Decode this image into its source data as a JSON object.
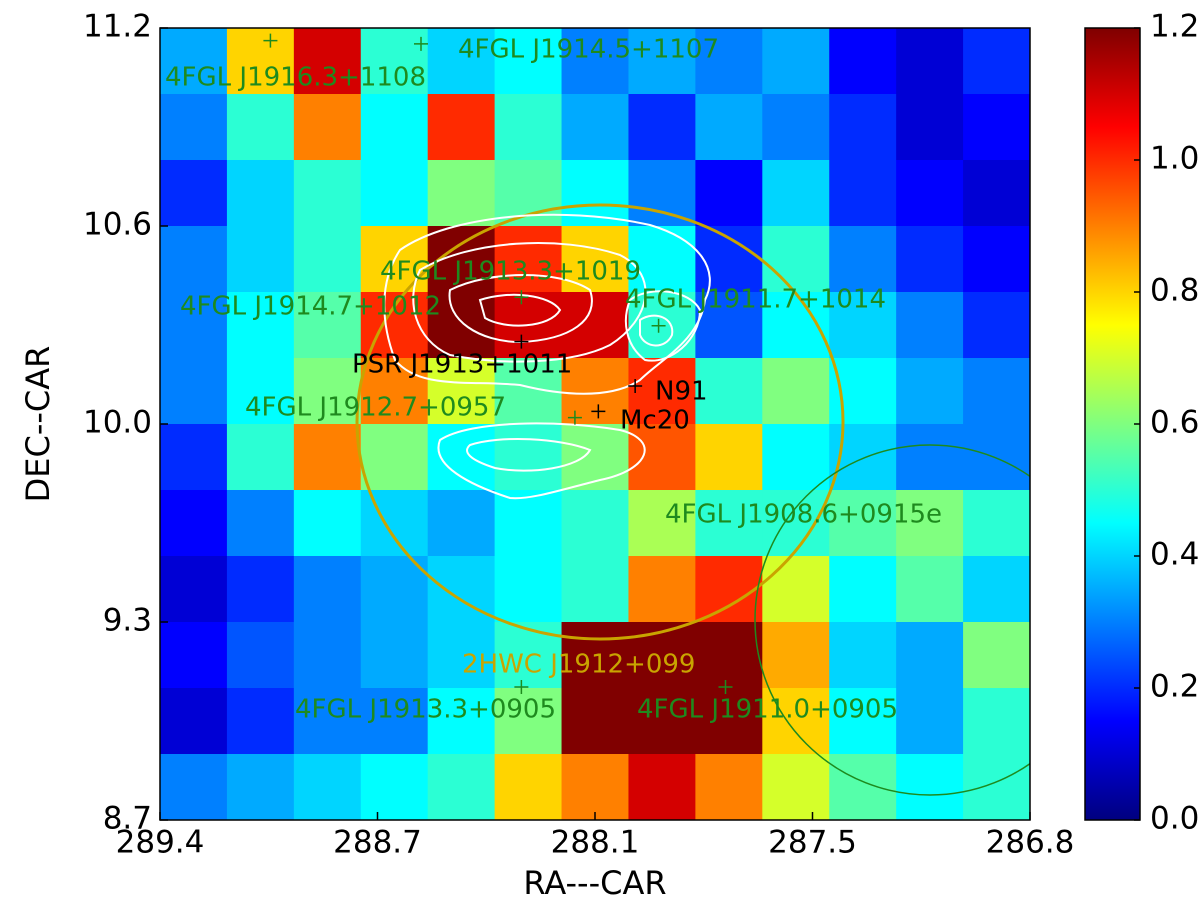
{
  "chart_data": {
    "type": "heatmap",
    "xlabel": "RA---CAR",
    "ylabel": "DEC--CAR",
    "colormap": "jet",
    "xlim": [
      289.4,
      286.8
    ],
    "ylim": [
      8.7,
      11.2
    ],
    "xticks": [
      289.4,
      {
        "value": 288.75,
        "label": "288.7"
      },
      288.1,
      {
        "value": 287.45,
        "label": "287.5"
      },
      286.8
    ],
    "yticks": [
      8.7,
      {
        "value": 9.325,
        "label": "9.3"
      },
      {
        "value": 9.95,
        "label": "10.0"
      },
      {
        "value": 10.575,
        "label": "10.6"
      },
      11.2
    ],
    "colorbar": {
      "clim": [
        0,
        1.2
      ],
      "ticks": [
        {
          "value": 0,
          "label": "0.0"
        },
        0.2,
        0.4,
        0.6,
        0.8,
        {
          "value": 1,
          "label": "1.0"
        },
        1.2
      ]
    },
    "values": [
      [
        0.35,
        0.8,
        1.1,
        0.5,
        0.4,
        0.45,
        0.3,
        0.35,
        0.3,
        0.35,
        0.15,
        0.1,
        0.2
      ],
      [
        0.3,
        0.5,
        0.9,
        0.45,
        1.0,
        0.5,
        0.35,
        0.2,
        0.35,
        0.3,
        0.2,
        0.1,
        0.15
      ],
      [
        0.2,
        0.4,
        0.5,
        0.45,
        0.6,
        0.55,
        0.45,
        0.3,
        0.15,
        0.4,
        0.2,
        0.15,
        0.1
      ],
      [
        0.3,
        0.4,
        0.5,
        0.8,
        1.2,
        1.0,
        0.8,
        0.45,
        0.2,
        0.5,
        0.3,
        0.2,
        0.15
      ],
      [
        0.3,
        0.45,
        0.55,
        1.0,
        1.2,
        1.1,
        1.1,
        0.5,
        0.25,
        0.45,
        0.4,
        0.3,
        0.2
      ],
      [
        0.3,
        0.45,
        0.6,
        0.9,
        0.7,
        0.55,
        0.9,
        1.0,
        0.5,
        0.6,
        0.45,
        0.35,
        0.3
      ],
      [
        0.2,
        0.5,
        0.9,
        0.6,
        0.45,
        0.5,
        0.6,
        0.95,
        0.8,
        0.45,
        0.4,
        0.3,
        0.3
      ],
      [
        0.15,
        0.3,
        0.45,
        0.4,
        0.35,
        0.45,
        0.5,
        0.65,
        0.5,
        0.5,
        0.55,
        0.6,
        0.5
      ],
      [
        0.1,
        0.2,
        0.3,
        0.35,
        0.4,
        0.45,
        0.5,
        0.9,
        1.0,
        0.7,
        0.45,
        0.55,
        0.4
      ],
      [
        0.15,
        0.25,
        0.3,
        0.35,
        0.4,
        0.5,
        1.2,
        1.2,
        1.2,
        0.85,
        0.4,
        0.35,
        0.6
      ],
      [
        0.1,
        0.2,
        0.3,
        0.3,
        0.45,
        0.6,
        1.2,
        1.2,
        1.2,
        0.8,
        0.45,
        0.35,
        0.5
      ],
      [
        0.3,
        0.35,
        0.4,
        0.45,
        0.5,
        0.8,
        0.9,
        1.1,
        0.9,
        0.7,
        0.55,
        0.45,
        0.5
      ]
    ],
    "markers": [
      {
        "x": 289.07,
        "y": 11.16,
        "color": "#1e8a1e"
      },
      {
        "x": 288.62,
        "y": 11.15,
        "color": "#1e8a1e"
      },
      {
        "x": 288.32,
        "y": 10.35,
        "color": "#1e8a1e"
      },
      {
        "x": 288.32,
        "y": 10.21,
        "color": "#000000"
      },
      {
        "x": 287.91,
        "y": 10.26,
        "color": "#1e8a1e"
      },
      {
        "x": 287.98,
        "y": 10.07,
        "color": "#000000"
      },
      {
        "x": 288.09,
        "y": 9.99,
        "color": "#000000"
      },
      {
        "x": 288.16,
        "y": 9.97,
        "color": "#1e8a1e"
      },
      {
        "x": 288.32,
        "y": 9.12,
        "color": "#1e8a1e"
      },
      {
        "x": 287.71,
        "y": 9.12,
        "color": "#1e8a1e"
      }
    ],
    "annotations": [
      {
        "text": "4FGL J1916.3+1108",
        "color": "#1e8a1e"
      },
      {
        "text": "4FGL J1914.5+1107",
        "color": "#1e8a1e"
      },
      {
        "text": "4FGL J1913.3+1019",
        "color": "#1e8a1e"
      },
      {
        "text": "4FGL J1914.7+1012",
        "color": "#1e8a1e"
      },
      {
        "text": "4FGL J1911.7+1014",
        "color": "#1e8a1e"
      },
      {
        "text": "PSR J1913+1011",
        "color": "#000000"
      },
      {
        "text": "N91",
        "color": "#000000"
      },
      {
        "text": "4FGL J1912.7+0957",
        "color": "#1e8a1e"
      },
      {
        "text": "Mc20",
        "color": "#000000"
      },
      {
        "text": "4FGL J1908.6+0915e",
        "color": "#1e8a1e"
      },
      {
        "text": "2HWC J1912+099",
        "color": "#c9a400"
      },
      {
        "text": "4FGL J1913.3+0905",
        "color": "#1e8a1e"
      },
      {
        "text": "4FGL J1911.0+0905",
        "color": "#1e8a1e"
      }
    ]
  }
}
